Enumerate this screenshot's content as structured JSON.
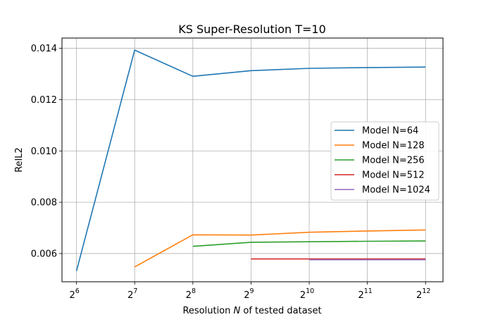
{
  "chart_data": {
    "type": "line",
    "title": "KS Super-Resolution T=10",
    "xlabel_prefix": "Resolution ",
    "xlabel_var": "N",
    "xlabel_suffix": " of tested dataset",
    "ylabel": "RelL2",
    "x_scale": "log2",
    "x_base": 2,
    "x_exponents": [
      6,
      7,
      8,
      9,
      10,
      11,
      12
    ],
    "xlim_exponents": [
      5.75,
      12.3
    ],
    "ylim": [
      0.0049,
      0.0144
    ],
    "y_ticks": [
      0.006,
      0.008,
      0.01,
      0.012,
      0.014
    ],
    "y_tick_labels": [
      "0.006",
      "0.008",
      "0.010",
      "0.012",
      "0.014"
    ],
    "grid": true,
    "legend_position": "center-right",
    "series": [
      {
        "name": "Model N=64",
        "color": "#1f77b4",
        "x_exponents": [
          6,
          7,
          8,
          9,
          10,
          11,
          12
        ],
        "values": [
          0.00532,
          0.01393,
          0.01291,
          0.01313,
          0.01322,
          0.01325,
          0.01327
        ]
      },
      {
        "name": "Model N=128",
        "color": "#ff7f0e",
        "x_exponents": [
          7,
          8,
          9,
          10,
          11,
          12
        ],
        "values": [
          0.00548,
          0.00673,
          0.00672,
          0.00683,
          0.00688,
          0.00692
        ]
      },
      {
        "name": "Model N=256",
        "color": "#2ca02c",
        "x_exponents": [
          8,
          9,
          10,
          11,
          12
        ],
        "values": [
          0.00628,
          0.00644,
          0.00646,
          0.00648,
          0.00649
        ]
      },
      {
        "name": "Model N=512",
        "color": "#d62728",
        "x_exponents": [
          9,
          10,
          11,
          12
        ],
        "values": [
          0.00579,
          0.00579,
          0.00579,
          0.00579
        ]
      },
      {
        "name": "Model N=1024",
        "color": "#9467bd",
        "x_exponents": [
          10,
          11,
          12
        ],
        "values": [
          0.00576,
          0.00576,
          0.00576
        ]
      }
    ]
  }
}
